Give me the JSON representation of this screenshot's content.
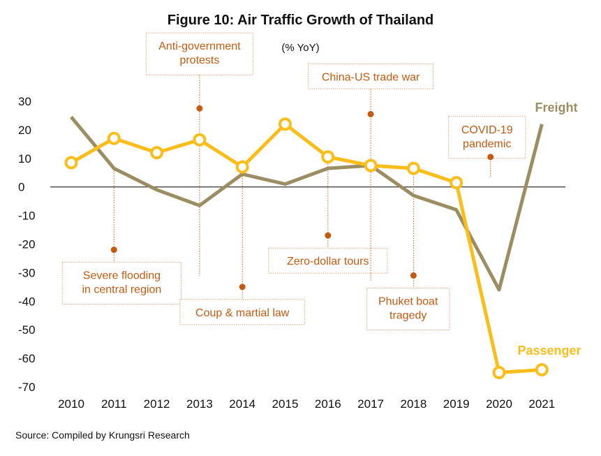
{
  "title": "Figure 10:  Air Traffic Growth of Thailand",
  "subtitle": "(% YoY)",
  "source": "Source: Compiled by Krungsri Research",
  "colors": {
    "freight": "#9c8e63",
    "passenger": "#fbbd19",
    "annotation": "#c55a11",
    "annotation_box": "#e0a57a",
    "axis_text": "#111111",
    "zero_line": "#000000"
  },
  "chart_data": {
    "type": "line",
    "title": "Figure 10:  Air Traffic Growth of Thailand",
    "subtitle": "(% YoY)",
    "x": [
      "2010",
      "2011",
      "2012",
      "2013",
      "2014",
      "2015",
      "2016",
      "2017",
      "2018",
      "2019",
      "2020",
      "2021"
    ],
    "ylim": [
      -70,
      30
    ],
    "yticks": [
      30,
      20,
      10,
      0,
      -10,
      -20,
      -30,
      -40,
      -50,
      -60,
      -70
    ],
    "grid": false,
    "series": [
      {
        "name": "Freight",
        "color": "#9c8e63",
        "markers": false,
        "values": [
          24.5,
          6.5,
          -1,
          -6.5,
          4.5,
          1,
          6.5,
          7.5,
          -3,
          -8,
          -36,
          22
        ]
      },
      {
        "name": "Passenger",
        "color": "#fbbd19",
        "markers": true,
        "values": [
          8.5,
          17,
          12,
          16.5,
          7,
          22,
          10.5,
          7.5,
          6.5,
          1.5,
          -65,
          -64
        ]
      }
    ],
    "annotations": [
      {
        "text": [
          "Severe flooding",
          "in central region"
        ],
        "year": "2011",
        "y": -22
      },
      {
        "text": [
          "Anti-government",
          "protests"
        ],
        "year": "2013",
        "y": 27.5
      },
      {
        "text": [
          "Coup & martial law"
        ],
        "year": "2014",
        "y": -35
      },
      {
        "text": [
          "Zero-dollar tours"
        ],
        "year": "2016",
        "y": -17
      },
      {
        "text": [
          "China-US trade war"
        ],
        "year": "2017",
        "y": 25.5
      },
      {
        "text": [
          "Phuket boat",
          "tragedy"
        ],
        "year": "2018",
        "y": -31
      },
      {
        "text": [
          "COVID-19",
          "pandemic"
        ],
        "year": "2019.8",
        "y": 10.5
      }
    ]
  }
}
